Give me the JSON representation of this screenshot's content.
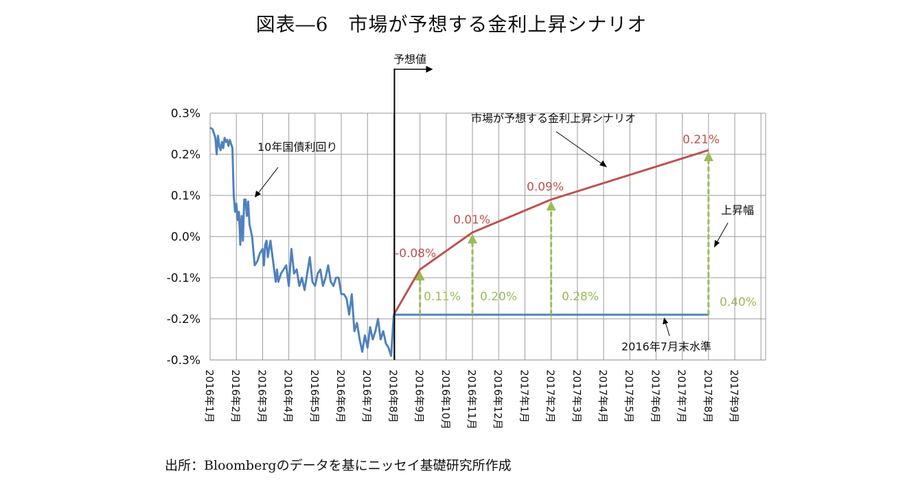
{
  "title": "図表―6　市場が予想する金利上昇シナリオ",
  "source": "出所：Bloombergのデータを基にニッセイ基礎研究所作成",
  "chart_data": {
    "type": "line",
    "title": "図表―6　市場が予想する金利上昇シナリオ",
    "ylim": [
      -0.3,
      0.3
    ],
    "y_ticks": [
      "0.3%",
      "0.2%",
      "0.1%",
      "0.0%",
      "-0.1%",
      "-0.2%",
      "-0.3%"
    ],
    "y_tick_values": [
      0.3,
      0.2,
      0.1,
      0.0,
      -0.1,
      -0.2,
      -0.3
    ],
    "x_ticks": [
      "2016年1月",
      "2016年2月",
      "2016年3月",
      "2016年4月",
      "2016年5月",
      "2016年6月",
      "2016年7月",
      "2016年8月",
      "2016年9月",
      "2016年10月",
      "2016年11月",
      "2016年12月",
      "2017年1月",
      "2017年2月",
      "2017年3月",
      "2017年4月",
      "2017年5月",
      "2017年6月",
      "2017年7月",
      "2017年8月",
      "2017年9月"
    ],
    "grid": true,
    "colors": {
      "jgb": "#4f81bd",
      "scenario": "#c0504d",
      "baseline": "#4f81bd",
      "rise": "#9bbb59",
      "divider": "#000000"
    },
    "series": [
      {
        "name": "10年国債利回り",
        "x": [
          0,
          0.1,
          0.2,
          0.25,
          0.3,
          0.35,
          0.4,
          0.45,
          0.5,
          0.55,
          0.6,
          0.65,
          0.7,
          0.75,
          0.8,
          0.85,
          0.9,
          0.95,
          1.0,
          1.05,
          1.1,
          1.15,
          1.2,
          1.25,
          1.3,
          1.35,
          1.4,
          1.45,
          1.5,
          1.6,
          1.7,
          1.8,
          1.9,
          2.0,
          2.05,
          2.1,
          2.15,
          2.2,
          2.3,
          2.4,
          2.5,
          2.55,
          2.6,
          2.7,
          2.8,
          2.9,
          3.0,
          3.1,
          3.2,
          3.3,
          3.4,
          3.5,
          3.6,
          3.7,
          3.8,
          3.9,
          4.0,
          4.1,
          4.2,
          4.3,
          4.4,
          4.5,
          4.6,
          4.7,
          4.8,
          4.9,
          5.0,
          5.1,
          5.2,
          5.3,
          5.4,
          5.5,
          5.6,
          5.7,
          5.8,
          5.9,
          6.0,
          6.1,
          6.2,
          6.3,
          6.4,
          6.5,
          6.6,
          6.7,
          6.8,
          6.9,
          7.0
        ],
        "values": [
          0.265,
          0.26,
          0.24,
          0.2,
          0.245,
          0.22,
          0.21,
          0.23,
          0.215,
          0.24,
          0.23,
          0.235,
          0.22,
          0.235,
          0.225,
          0.215,
          0.1,
          0.06,
          0.08,
          0.04,
          0.06,
          -0.02,
          0.05,
          -0.01,
          0.09,
          0.09,
          0.05,
          0.085,
          0.03,
          0.0,
          -0.07,
          -0.06,
          -0.04,
          -0.03,
          -0.07,
          -0.02,
          -0.01,
          -0.05,
          -0.01,
          -0.06,
          -0.11,
          -0.08,
          -0.11,
          -0.09,
          -0.08,
          -0.07,
          -0.12,
          -0.03,
          -0.09,
          -0.08,
          -0.12,
          -0.1,
          -0.13,
          -0.09,
          -0.05,
          -0.11,
          -0.12,
          -0.09,
          -0.08,
          -0.12,
          -0.1,
          -0.07,
          -0.11,
          -0.12,
          -0.1,
          -0.1,
          -0.14,
          -0.14,
          -0.15,
          -0.19,
          -0.14,
          -0.23,
          -0.21,
          -0.25,
          -0.28,
          -0.24,
          -0.27,
          -0.22,
          -0.25,
          -0.23,
          -0.2,
          -0.25,
          -0.23,
          -0.26,
          -0.27,
          -0.29,
          -0.19
        ]
      },
      {
        "name": "市場が予想する金利上昇シナリオ",
        "x": [
          7.0,
          8.0,
          10.0,
          13.0,
          19.0
        ],
        "values": [
          -0.19,
          -0.08,
          0.01,
          0.09,
          0.21
        ],
        "labels": [
          "",
          "-0.08%",
          "0.01%",
          "0.09%",
          "0.21%"
        ]
      },
      {
        "name": "2016年7月末水準",
        "x": [
          7.0,
          19.0
        ],
        "values": [
          -0.19,
          -0.19
        ]
      }
    ],
    "rise": {
      "x": [
        8.0,
        10.0,
        13.0,
        19.0
      ],
      "labels": [
        "0.11%",
        "0.20%",
        "0.28%",
        "0.40%"
      ]
    },
    "annotations": {
      "forecast": "予想値",
      "jgb": "10年国債利回り",
      "scenario": "市場が予想する金利上昇シナリオ",
      "rise": "上昇幅",
      "baseline": "2016年7月末水準"
    }
  }
}
